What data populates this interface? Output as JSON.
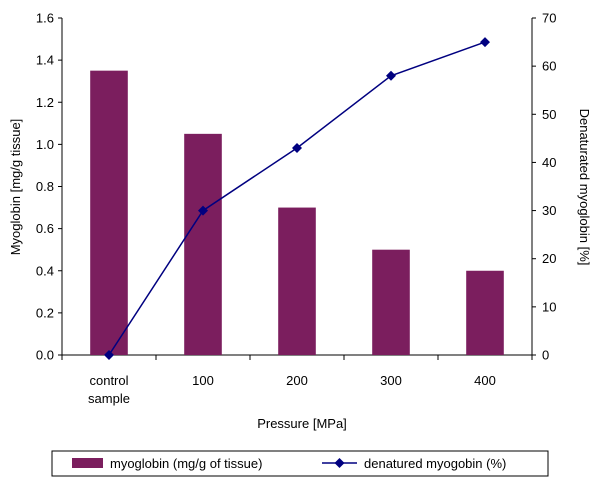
{
  "chart_data": {
    "type": "bar",
    "categories": [
      "control sample",
      "100",
      "200",
      "300",
      "400"
    ],
    "category_lines": [
      [
        "control",
        "sample"
      ],
      [
        "100"
      ],
      [
        "200"
      ],
      [
        "300"
      ],
      [
        "400"
      ]
    ],
    "series": [
      {
        "name": "myoglobin (mg/g of tissue)",
        "type": "bar",
        "axis": "left",
        "color": "#7B1E5E",
        "values": [
          1.35,
          1.05,
          0.7,
          0.5,
          0.4
        ]
      },
      {
        "name": "denatured myogobin (%)",
        "type": "line",
        "axis": "right",
        "color": "#000080",
        "values": [
          0,
          30,
          43,
          58,
          65
        ]
      }
    ],
    "xlabel": "Pressure [MPa]",
    "ylabel_left": "Myoglobin [mg/g tissue]",
    "ylabel_right": "Denaturated myoglobin [%]",
    "ylim_left": [
      0,
      1.6
    ],
    "yticks_left": [
      "0.0",
      "0.2",
      "0.4",
      "0.6",
      "0.8",
      "1.0",
      "1.2",
      "1.4",
      "1.6"
    ],
    "ylim_right": [
      0,
      70
    ],
    "yticks_right": [
      "0",
      "10",
      "20",
      "30",
      "40",
      "50",
      "60",
      "70"
    ],
    "grid": false,
    "legend_position": "bottom"
  }
}
